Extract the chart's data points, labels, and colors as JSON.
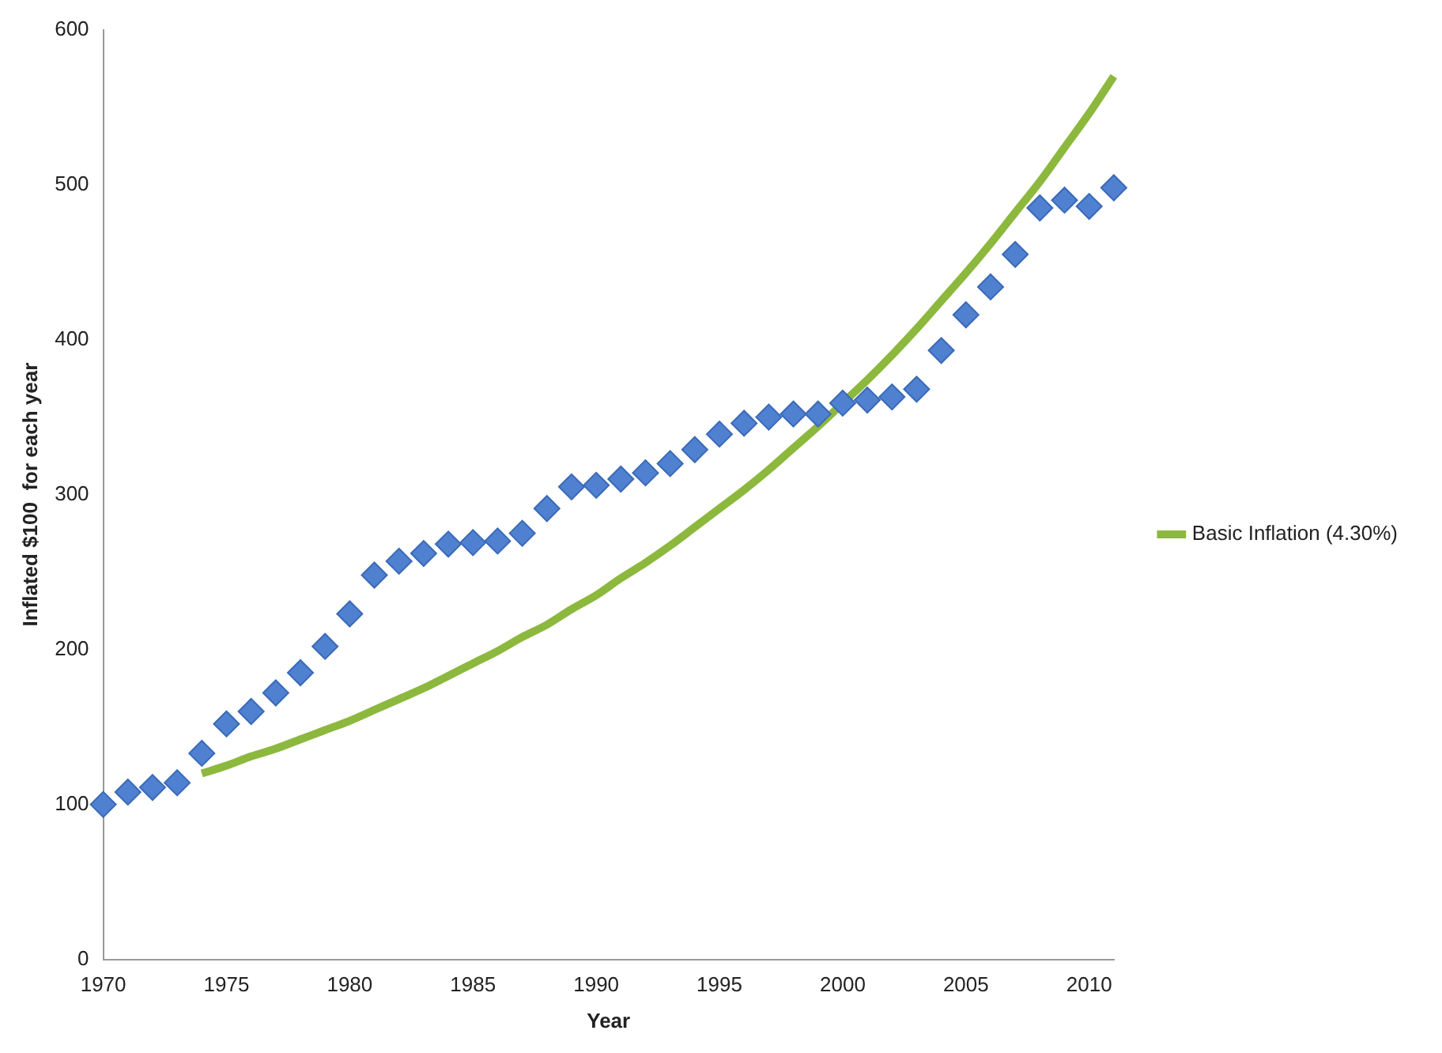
{
  "chart_data": {
    "type": "scatter",
    "xlabel": "Year",
    "ylabel": "Inflated $100  for each year",
    "xlim": [
      1970,
      2011
    ],
    "xticks": [
      1970,
      1975,
      1980,
      1985,
      1990,
      1995,
      2000,
      2005,
      2010
    ],
    "ylim": [
      0,
      600
    ],
    "yticks": [
      0,
      100,
      200,
      300,
      400,
      500,
      600
    ],
    "grid": false,
    "legend": "right",
    "series": [
      {
        "type": "scatter",
        "color": "#4f81d0",
        "marker": "diamond",
        "x": [
          1970,
          1971,
          1972,
          1973,
          1974,
          1975,
          1976,
          1977,
          1978,
          1979,
          1980,
          1981,
          1982,
          1983,
          1984,
          1985,
          1986,
          1987,
          1988,
          1989,
          1990,
          1991,
          1992,
          1993,
          1994,
          1995,
          1996,
          1997,
          1998,
          1999,
          2000,
          2001,
          2002,
          2003,
          2004,
          2005,
          2006,
          2007,
          2008,
          2009,
          2010,
          2011
        ],
        "values": [
          100,
          108,
          111,
          114,
          133,
          152,
          160,
          172,
          185,
          202,
          223,
          248,
          257,
          262,
          268,
          269,
          270,
          275,
          291,
          305,
          306,
          310,
          314,
          320,
          329,
          339,
          346,
          350,
          352,
          352,
          359,
          361,
          363,
          368,
          393,
          416,
          434,
          455,
          485,
          490,
          486,
          498
        ]
      },
      {
        "type": "line",
        "name": "Basic Inflation (4.30%)",
        "color": "#8db83e",
        "marker": "none",
        "line_style": "solid",
        "x": [
          1974,
          1975,
          1976,
          1977,
          1978,
          1979,
          1980,
          1981,
          1982,
          1983,
          1984,
          1985,
          1986,
          1987,
          1988,
          1989,
          1990,
          1991,
          1992,
          1993,
          1994,
          1995,
          1996,
          1997,
          1998,
          1999,
          2000,
          2001,
          2002,
          2003,
          2004,
          2005,
          2006,
          2007,
          2008,
          2009,
          2010,
          2011
        ],
        "values": [
          120,
          125,
          131,
          136,
          142,
          148,
          154,
          161,
          168,
          175,
          183,
          191,
          199,
          208,
          216,
          226,
          235,
          246,
          256,
          267,
          279,
          291,
          303,
          316,
          330,
          344,
          359,
          374,
          390,
          407,
          425,
          443,
          462,
          482,
          502,
          524,
          546,
          570
        ]
      }
    ]
  }
}
